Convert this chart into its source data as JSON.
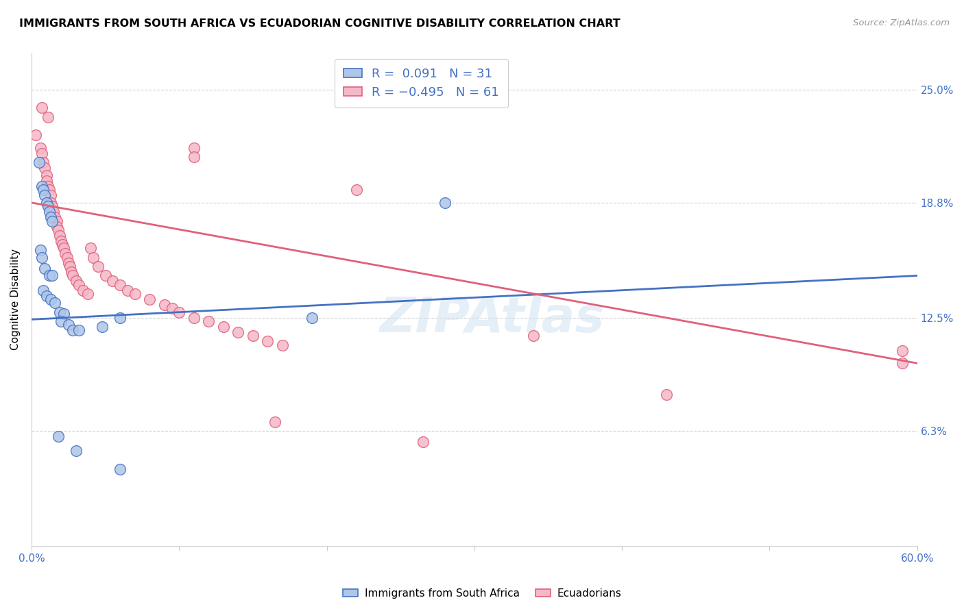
{
  "title": "IMMIGRANTS FROM SOUTH AFRICA VS ECUADORIAN COGNITIVE DISABILITY CORRELATION CHART",
  "source": "Source: ZipAtlas.com",
  "ylabel": "Cognitive Disability",
  "ytick_labels": [
    "6.3%",
    "12.5%",
    "18.8%",
    "25.0%"
  ],
  "ytick_vals": [
    0.063,
    0.125,
    0.188,
    0.25
  ],
  "xlim": [
    0.0,
    0.6
  ],
  "ylim": [
    0.0,
    0.27
  ],
  "blue_color": "#aec6e8",
  "pink_color": "#f5b8c8",
  "blue_line_color": "#4472c4",
  "pink_line_color": "#e0607a",
  "blue_R": 0.091,
  "blue_N": 31,
  "pink_R": -0.495,
  "pink_N": 61,
  "blue_line": [
    [
      0.0,
      0.124
    ],
    [
      0.6,
      0.148
    ]
  ],
  "pink_line": [
    [
      0.0,
      0.188
    ],
    [
      0.6,
      0.1
    ]
  ],
  "blue_scatter": [
    [
      0.005,
      0.21
    ],
    [
      0.007,
      0.197
    ],
    [
      0.008,
      0.195
    ],
    [
      0.009,
      0.192
    ],
    [
      0.01,
      0.188
    ],
    [
      0.011,
      0.186
    ],
    [
      0.012,
      0.183
    ],
    [
      0.013,
      0.18
    ],
    [
      0.014,
      0.178
    ],
    [
      0.006,
      0.162
    ],
    [
      0.007,
      0.158
    ],
    [
      0.009,
      0.152
    ],
    [
      0.012,
      0.148
    ],
    [
      0.014,
      0.148
    ],
    [
      0.008,
      0.14
    ],
    [
      0.01,
      0.137
    ],
    [
      0.013,
      0.135
    ],
    [
      0.016,
      0.133
    ],
    [
      0.019,
      0.128
    ],
    [
      0.022,
      0.127
    ],
    [
      0.02,
      0.123
    ],
    [
      0.025,
      0.121
    ],
    [
      0.028,
      0.118
    ],
    [
      0.032,
      0.118
    ],
    [
      0.048,
      0.12
    ],
    [
      0.06,
      0.125
    ],
    [
      0.28,
      0.188
    ],
    [
      0.19,
      0.125
    ],
    [
      0.018,
      0.06
    ],
    [
      0.03,
      0.052
    ],
    [
      0.06,
      0.042
    ]
  ],
  "pink_scatter": [
    [
      0.003,
      0.225
    ],
    [
      0.006,
      0.218
    ],
    [
      0.007,
      0.215
    ],
    [
      0.008,
      0.21
    ],
    [
      0.009,
      0.207
    ],
    [
      0.01,
      0.203
    ],
    [
      0.01,
      0.2
    ],
    [
      0.011,
      0.197
    ],
    [
      0.012,
      0.195
    ],
    [
      0.013,
      0.192
    ],
    [
      0.013,
      0.188
    ],
    [
      0.014,
      0.186
    ],
    [
      0.015,
      0.183
    ],
    [
      0.016,
      0.18
    ],
    [
      0.017,
      0.178
    ],
    [
      0.017,
      0.175
    ],
    [
      0.018,
      0.173
    ],
    [
      0.019,
      0.17
    ],
    [
      0.02,
      0.167
    ],
    [
      0.021,
      0.165
    ],
    [
      0.022,
      0.163
    ],
    [
      0.023,
      0.16
    ],
    [
      0.024,
      0.158
    ],
    [
      0.025,
      0.155
    ],
    [
      0.026,
      0.153
    ],
    [
      0.027,
      0.15
    ],
    [
      0.028,
      0.148
    ],
    [
      0.03,
      0.145
    ],
    [
      0.032,
      0.143
    ],
    [
      0.035,
      0.14
    ],
    [
      0.038,
      0.138
    ],
    [
      0.04,
      0.163
    ],
    [
      0.042,
      0.158
    ],
    [
      0.045,
      0.153
    ],
    [
      0.05,
      0.148
    ],
    [
      0.055,
      0.145
    ],
    [
      0.06,
      0.143
    ],
    [
      0.065,
      0.14
    ],
    [
      0.07,
      0.138
    ],
    [
      0.08,
      0.135
    ],
    [
      0.09,
      0.132
    ],
    [
      0.095,
      0.13
    ],
    [
      0.1,
      0.128
    ],
    [
      0.11,
      0.125
    ],
    [
      0.12,
      0.123
    ],
    [
      0.13,
      0.12
    ],
    [
      0.14,
      0.117
    ],
    [
      0.15,
      0.115
    ],
    [
      0.16,
      0.112
    ],
    [
      0.17,
      0.11
    ],
    [
      0.007,
      0.24
    ],
    [
      0.011,
      0.235
    ],
    [
      0.11,
      0.218
    ],
    [
      0.11,
      0.213
    ],
    [
      0.22,
      0.195
    ],
    [
      0.34,
      0.115
    ],
    [
      0.43,
      0.083
    ],
    [
      0.165,
      0.068
    ],
    [
      0.265,
      0.057
    ],
    [
      0.59,
      0.107
    ],
    [
      0.59,
      0.1
    ]
  ]
}
